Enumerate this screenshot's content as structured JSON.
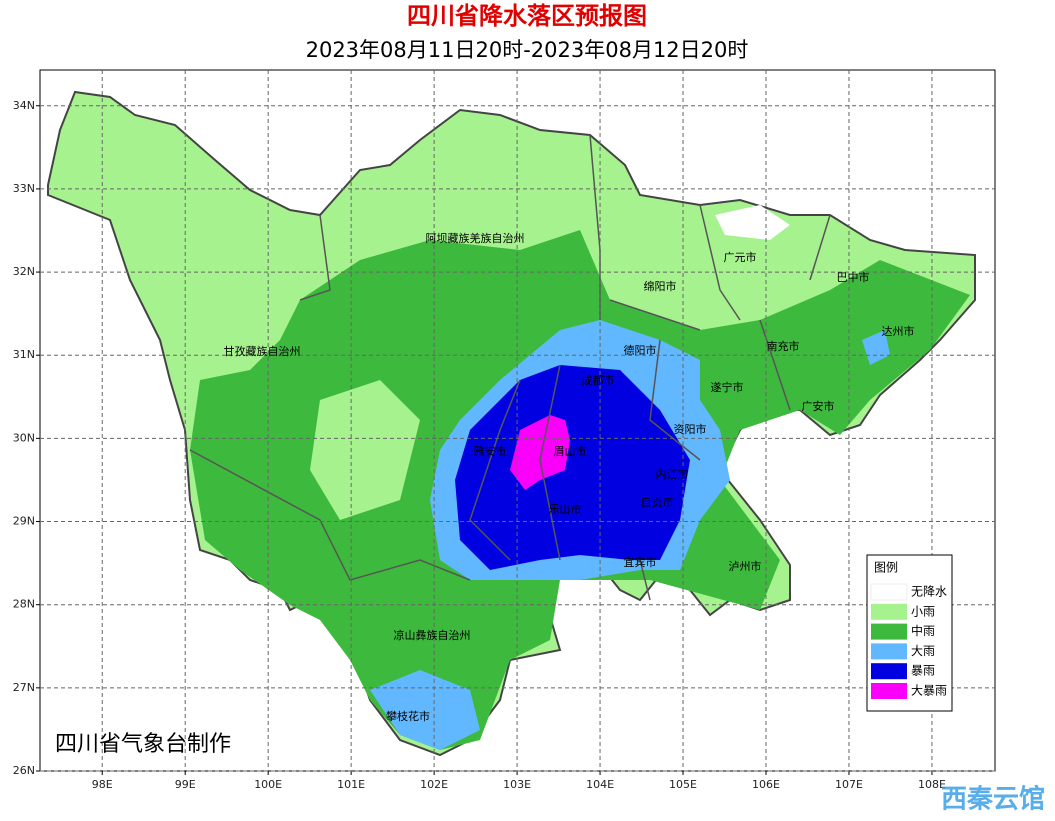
{
  "title": "四川省降水落区预报图",
  "subtitle": "2023年08月11日20时-2023年08月12日20时",
  "map": {
    "xlim": [
      97.25,
      108.76
    ],
    "ylim": [
      26,
      34.43
    ],
    "xticks": [
      {
        "value": 98,
        "label": "98E"
      },
      {
        "value": 99,
        "label": "99E"
      },
      {
        "value": 100,
        "label": "100E"
      },
      {
        "value": 101,
        "label": "101E"
      },
      {
        "value": 102,
        "label": "102E"
      },
      {
        "value": 103,
        "label": "103E"
      },
      {
        "value": 104,
        "label": "104E"
      },
      {
        "value": 105,
        "label": "105E"
      },
      {
        "value": 106,
        "label": "106E"
      },
      {
        "value": 107,
        "label": "107E"
      },
      {
        "value": 108,
        "label": "108E"
      }
    ],
    "yticks": [
      {
        "value": 26,
        "label": "26N"
      },
      {
        "value": 27,
        "label": "27N"
      },
      {
        "value": 28,
        "label": "28N"
      },
      {
        "value": 29,
        "label": "29N"
      },
      {
        "value": 30,
        "label": "30N"
      },
      {
        "value": 31,
        "label": "31N"
      },
      {
        "value": 32,
        "label": "32N"
      },
      {
        "value": 33,
        "label": "33N"
      },
      {
        "value": 34,
        "label": "34N"
      }
    ],
    "grid": true
  },
  "regions": [
    "阿坝藏族羌族自治州",
    "甘孜藏族自治州",
    "广元市",
    "巴中市",
    "绵阳市",
    "德阳市",
    "达州市",
    "南充市",
    "成都市",
    "遂宁市",
    "广安市",
    "资阳市",
    "雅安市",
    "眉山市",
    "内江市",
    "乐山市",
    "自贡市",
    "宜宾市",
    "泸州市",
    "凉山彝族自治州",
    "攀枝花市"
  ],
  "legend": {
    "title": "图例",
    "items": [
      {
        "name": "无降水",
        "color": "#ffffff"
      },
      {
        "name": "小雨",
        "color": "#a6f28f"
      },
      {
        "name": "中雨",
        "color": "#3dba3d"
      },
      {
        "name": "大雨",
        "color": "#61b8ff"
      },
      {
        "name": "暴雨",
        "color": "#0000e1"
      },
      {
        "name": "大暴雨",
        "color": "#fa00fa"
      }
    ]
  },
  "credit": "四川省气象台制作",
  "watermark": "西秦云馆"
}
